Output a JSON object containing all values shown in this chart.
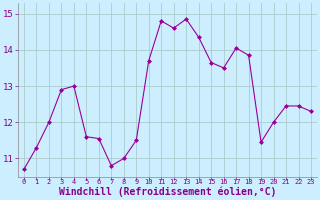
{
  "x": [
    0,
    1,
    2,
    3,
    4,
    5,
    6,
    7,
    8,
    9,
    10,
    11,
    12,
    13,
    14,
    15,
    16,
    17,
    18,
    19,
    20,
    21,
    22,
    23
  ],
  "y": [
    10.7,
    11.3,
    12.0,
    12.9,
    13.0,
    11.6,
    11.55,
    10.8,
    11.0,
    11.5,
    13.7,
    14.8,
    14.6,
    14.85,
    14.35,
    13.65,
    13.5,
    14.05,
    13.85,
    11.45,
    12.0,
    12.45,
    12.45,
    12.3
  ],
  "line_color": "#990099",
  "marker": "D",
  "marker_size": 2,
  "bg_color": "#cceeff",
  "grid_color": "#aacccc",
  "xlabel": "Windchill (Refroidissement éolien,°C)",
  "xlabel_color": "#880088",
  "tick_color": "#880088",
  "ylim": [
    10.5,
    15.3
  ],
  "yticks": [
    11,
    12,
    13,
    14,
    15
  ],
  "xticks": [
    0,
    1,
    2,
    3,
    4,
    5,
    6,
    7,
    8,
    9,
    10,
    11,
    12,
    13,
    14,
    15,
    16,
    17,
    18,
    19,
    20,
    21,
    22,
    23
  ]
}
